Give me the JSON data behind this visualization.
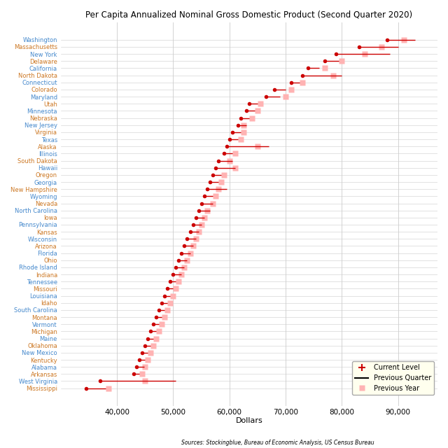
{
  "title": "Per Capita Annualized Nominal Gross Domestic Product (Second Quarter 2020)",
  "xlabel": "Dollars",
  "source": "Sources: Stockingblue, Bureau of Economic Analysis, US Census Bureau",
  "states": [
    "Washington",
    "Massachusetts",
    "New York",
    "Delaware",
    "California",
    "North Dakota",
    "Connecticut",
    "Colorado",
    "Maryland",
    "Utah",
    "Minnesota",
    "Nebraska",
    "New Jersey",
    "Virginia",
    "Texas",
    "Alaska",
    "Illinois",
    "South Dakota",
    "Hawaii",
    "Oregon",
    "Georgia",
    "New Hampshire",
    "Wyoming",
    "Nevada",
    "North Carolina",
    "Iowa",
    "Pennsylvania",
    "Kansas",
    "Wisconsin",
    "Arizona",
    "Florida",
    "Ohio",
    "Rhode Island",
    "Indiana",
    "Tennessee",
    "Missouri",
    "Louisiana",
    "Idaho",
    "South Carolina",
    "Montana",
    "Vermont",
    "Michigan",
    "Maine",
    "Oklahoma",
    "New Mexico",
    "Kentucky",
    "Alabama",
    "Arkansas",
    "West Virginia",
    "Mississippi"
  ],
  "current": [
    88000,
    83000,
    79000,
    77000,
    74000,
    73000,
    71000,
    68000,
    66500,
    63500,
    63000,
    62000,
    61500,
    60500,
    60000,
    59500,
    59000,
    58000,
    57500,
    57000,
    56500,
    56000,
    55500,
    55000,
    54500,
    54000,
    53500,
    53000,
    52500,
    52000,
    51500,
    51000,
    50500,
    50000,
    49500,
    49000,
    48500,
    48000,
    47500,
    47000,
    46500,
    46000,
    45500,
    45000,
    44500,
    44000,
    43500,
    43000,
    37000,
    34500
  ],
  "prev_quarter": [
    93000,
    90000,
    88500,
    79500,
    76000,
    80000,
    72500,
    70000,
    69000,
    65000,
    64500,
    63500,
    63000,
    62000,
    61500,
    67000,
    60500,
    60500,
    61000,
    58500,
    58000,
    59500,
    57000,
    57000,
    56500,
    55500,
    55000,
    54500,
    54000,
    53500,
    53000,
    52500,
    52000,
    51500,
    50500,
    50000,
    49500,
    49000,
    48500,
    48000,
    47500,
    47000,
    46500,
    46000,
    45500,
    45000,
    44800,
    44000,
    50500,
    38000
  ],
  "prev_year": [
    91000,
    87000,
    84000,
    80000,
    77000,
    78500,
    73000,
    71000,
    70000,
    65500,
    65000,
    64000,
    62500,
    62500,
    62000,
    65000,
    61000,
    60000,
    61000,
    59000,
    58500,
    58000,
    57500,
    57000,
    56000,
    55500,
    55000,
    54500,
    54000,
    53500,
    53000,
    52500,
    52000,
    51500,
    51000,
    50500,
    50000,
    49500,
    49000,
    48500,
    48000,
    47500,
    47000,
    46500,
    46000,
    45500,
    45000,
    44500,
    45000,
    38500
  ],
  "dot_color": "#cc0000",
  "line_color": "#cc0000",
  "prev_year_color": "#ffb3b3",
  "xlim": [
    30000,
    97000
  ],
  "xtick_vals": [
    40000,
    50000,
    60000,
    70000,
    80000,
    90000
  ],
  "grid_color": "#cccccc",
  "bg_color": "#ffffff",
  "label_color_blue": "#4488cc",
  "label_color_orange": "#cc7722",
  "legend_bg": "#ffffee"
}
